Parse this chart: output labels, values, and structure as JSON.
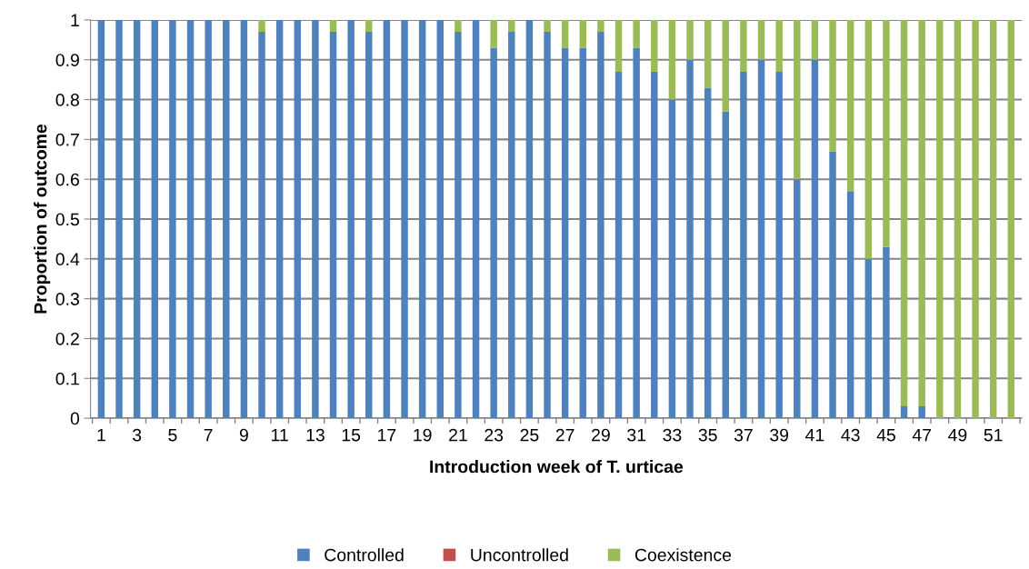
{
  "chart_data": {
    "type": "bar",
    "stacked": true,
    "xlabel": "Introduction week of T. urticae",
    "ylabel": "Proportion of outcome",
    "categories": [
      "1",
      null,
      "3",
      null,
      "5",
      null,
      "7",
      null,
      "9",
      null,
      "11",
      null,
      "13",
      null,
      "15",
      null,
      "17",
      null,
      "19",
      null,
      "21",
      null,
      "23",
      null,
      "25",
      null,
      "27",
      null,
      "29",
      null,
      "31",
      null,
      "33",
      null,
      "35",
      null,
      "37",
      null,
      "39",
      null,
      "41",
      null,
      "43",
      null,
      "45",
      null,
      "47",
      null,
      "49",
      null,
      "51",
      null
    ],
    "series": [
      {
        "name": "Controlled",
        "color": "#4f81bd",
        "values": [
          1,
          1,
          1,
          1,
          1,
          1,
          1,
          1,
          1,
          0.97,
          1,
          1,
          1,
          0.97,
          1,
          0.97,
          1,
          1,
          1,
          1,
          0.97,
          1,
          0.93,
          0.97,
          1,
          0.97,
          0.93,
          0.93,
          0.97,
          0.87,
          0.93,
          0.87,
          0.8,
          0.9,
          0.83,
          0.77,
          0.87,
          0.9,
          0.87,
          0.6,
          0.9,
          0.67,
          0.57,
          0.4,
          0.43,
          0.03,
          0.03,
          0,
          0,
          0,
          0,
          0
        ]
      },
      {
        "name": "Uncontrolled",
        "color": "#c0504d",
        "values": [
          0,
          0,
          0,
          0,
          0,
          0,
          0,
          0,
          0,
          0,
          0,
          0,
          0,
          0,
          0,
          0,
          0,
          0,
          0,
          0,
          0,
          0,
          0,
          0,
          0,
          0,
          0,
          0,
          0,
          0,
          0,
          0,
          0,
          0,
          0,
          0,
          0,
          0,
          0,
          0,
          0,
          0,
          0,
          0,
          0,
          0,
          0,
          0,
          0,
          0,
          0,
          0
        ]
      },
      {
        "name": "Coexistence",
        "color": "#9bbb59",
        "values": [
          0,
          0,
          0,
          0,
          0,
          0,
          0,
          0,
          0,
          0.03,
          0,
          0,
          0,
          0.03,
          0,
          0.03,
          0,
          0,
          0,
          0,
          0.03,
          0,
          0.07,
          0.03,
          0,
          0.03,
          0.07,
          0.07,
          0.03,
          0.13,
          0.07,
          0.13,
          0.2,
          0.1,
          0.17,
          0.23,
          0.13,
          0.1,
          0.13,
          0.4,
          0.1,
          0.33,
          0.43,
          0.6,
          0.57,
          0.97,
          0.97,
          1,
          1,
          1,
          1,
          1
        ]
      }
    ],
    "ylim": [
      0,
      1
    ],
    "yticks": [
      0,
      {
        "value": 0.1,
        "label": "0.1"
      },
      {
        "value": 0.2,
        "label": "0.2"
      },
      {
        "value": 0.3,
        "label": "0.3"
      },
      {
        "value": 0.4,
        "label": "0.4"
      },
      {
        "value": 0.5,
        "label": "0.5"
      },
      {
        "value": 0.6,
        "label": "0.6"
      },
      {
        "value": 0.7,
        "label": "0.7"
      },
      {
        "value": 0.8,
        "label": "0.8"
      },
      {
        "value": 0.9,
        "label": "0.9"
      },
      1
    ],
    "grid": "y",
    "legend": "bottom"
  }
}
